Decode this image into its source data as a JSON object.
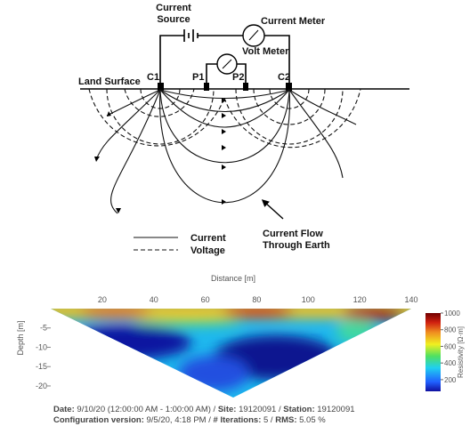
{
  "diagram": {
    "current_source": [
      "Current",
      "Source"
    ],
    "current_meter": "Current Meter",
    "volt_meter": "Volt Meter",
    "land_surface": "Land Surface",
    "electrodes": [
      "C1",
      "P1",
      "P2",
      "C2"
    ],
    "flow_label": [
      "Current Flow",
      "Through Earth"
    ],
    "legend": [
      "Current",
      "Voltage"
    ]
  },
  "section": {
    "x_title": "Distance [m]",
    "y_title": "Depth [m]",
    "xticks": [
      20,
      40,
      60,
      80,
      100,
      120,
      140
    ],
    "xlim": [
      0,
      140
    ],
    "yticks": [
      -5,
      -10,
      -15,
      -20
    ],
    "ylim": [
      -23,
      0
    ],
    "colorbar_title": "Resistivity [Ω·m]",
    "colorbar_ticks": [
      200,
      400,
      600,
      800,
      1000
    ],
    "colorbar_lim": [
      60,
      1000
    ],
    "footer": [
      [
        "Date:",
        " 9/10/20 (12:00:00 AM - 1:00:00 AM) / ",
        "Site:",
        " 19120091 / ",
        "Station:",
        " 19120091"
      ],
      [
        "Configuration version:",
        " 9/5/20, 4:18 PM / ",
        "# Iterations:",
        " 5 / ",
        "RMS:",
        " 5.05 %"
      ]
    ]
  }
}
